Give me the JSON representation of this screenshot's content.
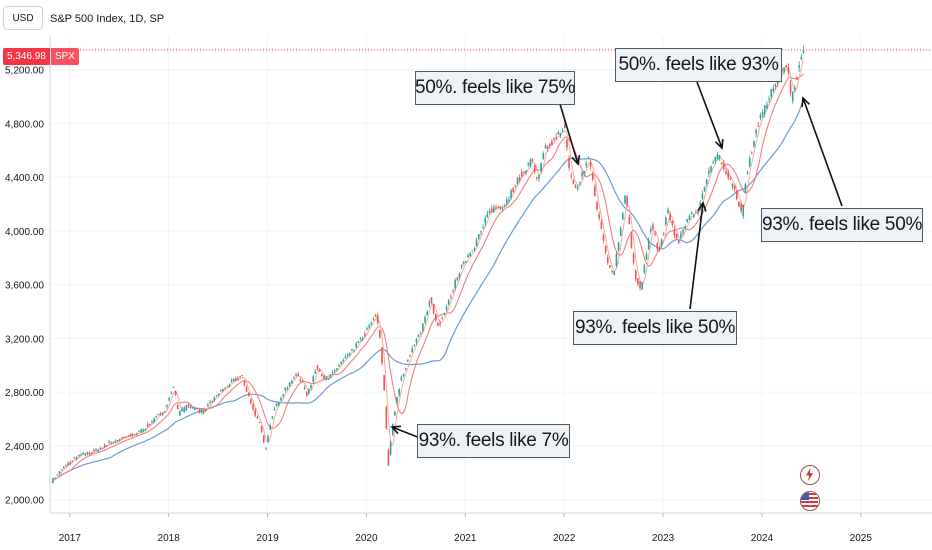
{
  "header": {
    "currency": "USD",
    "title": "S&P 500 Index, 1D, SP"
  },
  "price_label": {
    "value": "5,346.98",
    "symbol": "SPX"
  },
  "colors": {
    "candle_up": "#26a69a",
    "candle_down": "#ef5350",
    "ma_fast": "#f7a9a0",
    "ma_mid": "#f08080",
    "ma_slow": "#6b9bd8",
    "price_line": "#f23645"
  },
  "annotations": [
    {
      "text": "50%. feels like 75%"
    },
    {
      "text": "50%. feels like 93%"
    },
    {
      "text": "93%. feels like 50%"
    },
    {
      "text": "93%. feels like 50%"
    },
    {
      "text": "93%. feels like 7%"
    }
  ],
  "badges": [
    {
      "icon": "lightning-icon"
    },
    {
      "icon": "us-flag-icon"
    }
  ],
  "chart_data": {
    "type": "line",
    "ylim": [
      1900,
      5450
    ],
    "yticks": [
      "2,000.00",
      "2,400.00",
      "2,800.00",
      "3,200.00",
      "3,600.00",
      "4,000.00",
      "4,400.00",
      "4,800.00",
      "5,200.00"
    ],
    "yticks_values": [
      2000,
      2400,
      2800,
      3200,
      3600,
      4000,
      4400,
      4800,
      5200
    ],
    "xticks": [
      "2017",
      "2018",
      "2019",
      "2020",
      "2021",
      "2022",
      "2023",
      "2024",
      "2025"
    ],
    "xticks_values": [
      2017,
      2018,
      2019,
      2020,
      2021,
      2022,
      2023,
      2024,
      2025
    ],
    "xlim": [
      2016.8,
      2025.72
    ],
    "last_price": 5346.98,
    "series": [
      {
        "values": [
          [
            2016.82,
            2140
          ],
          [
            2016.95,
            2250
          ],
          [
            2017.1,
            2330
          ],
          [
            2017.25,
            2360
          ],
          [
            2017.4,
            2420
          ],
          [
            2017.55,
            2460
          ],
          [
            2017.7,
            2500
          ],
          [
            2017.85,
            2590
          ],
          [
            2017.97,
            2680
          ],
          [
            2018.05,
            2850
          ],
          [
            2018.1,
            2640
          ],
          [
            2018.2,
            2700
          ],
          [
            2018.35,
            2650
          ],
          [
            2018.5,
            2790
          ],
          [
            2018.65,
            2880
          ],
          [
            2018.74,
            2920
          ],
          [
            2018.85,
            2680
          ],
          [
            2018.93,
            2550
          ],
          [
            2018.98,
            2360
          ],
          [
            2019.05,
            2640
          ],
          [
            2019.15,
            2790
          ],
          [
            2019.3,
            2940
          ],
          [
            2019.4,
            2780
          ],
          [
            2019.5,
            2990
          ],
          [
            2019.6,
            2880
          ],
          [
            2019.7,
            2980
          ],
          [
            2019.85,
            3100
          ],
          [
            2019.98,
            3230
          ],
          [
            2020.1,
            3380
          ],
          [
            2020.14,
            3200
          ],
          [
            2020.19,
            2700
          ],
          [
            2020.22,
            2240
          ],
          [
            2020.27,
            2600
          ],
          [
            2020.35,
            2900
          ],
          [
            2020.45,
            3100
          ],
          [
            2020.55,
            3250
          ],
          [
            2020.65,
            3500
          ],
          [
            2020.72,
            3280
          ],
          [
            2020.8,
            3400
          ],
          [
            2020.9,
            3620
          ],
          [
            2020.98,
            3760
          ],
          [
            2021.1,
            3900
          ],
          [
            2021.25,
            4150
          ],
          [
            2021.4,
            4200
          ],
          [
            2021.55,
            4400
          ],
          [
            2021.68,
            4530
          ],
          [
            2021.73,
            4350
          ],
          [
            2021.8,
            4600
          ],
          [
            2021.92,
            4690
          ],
          [
            2022.0,
            4790
          ],
          [
            2022.05,
            4450
          ],
          [
            2022.12,
            4300
          ],
          [
            2022.25,
            4550
          ],
          [
            2022.35,
            4100
          ],
          [
            2022.45,
            3750
          ],
          [
            2022.5,
            3670
          ],
          [
            2022.62,
            4280
          ],
          [
            2022.72,
            3640
          ],
          [
            2022.78,
            3580
          ],
          [
            2022.88,
            4050
          ],
          [
            2022.96,
            3840
          ],
          [
            2023.05,
            4150
          ],
          [
            2023.15,
            3900
          ],
          [
            2023.25,
            4100
          ],
          [
            2023.35,
            4150
          ],
          [
            2023.45,
            4400
          ],
          [
            2023.55,
            4580
          ],
          [
            2023.65,
            4420
          ],
          [
            2023.75,
            4250
          ],
          [
            2023.8,
            4120
          ],
          [
            2023.85,
            4450
          ],
          [
            2023.95,
            4770
          ],
          [
            2024.05,
            4950
          ],
          [
            2024.15,
            5120
          ],
          [
            2024.25,
            5250
          ],
          [
            2024.3,
            4990
          ],
          [
            2024.37,
            5200
          ],
          [
            2024.42,
            5347
          ]
        ]
      }
    ]
  }
}
